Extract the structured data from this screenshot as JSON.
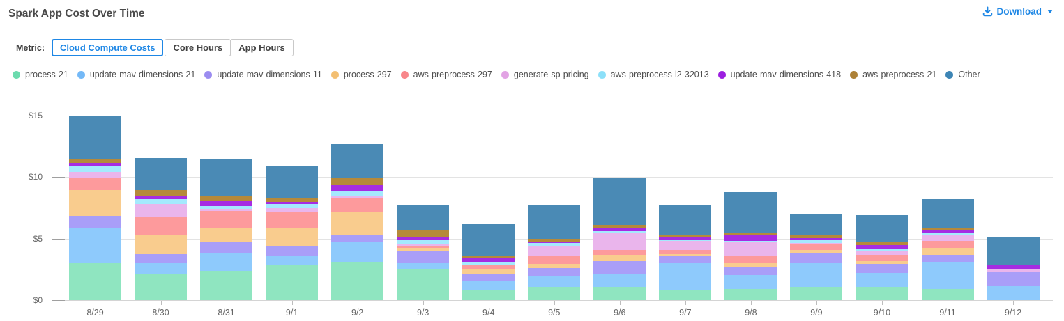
{
  "header": {
    "title": "Spark App Cost Over Time",
    "download_label": "Download",
    "accent_color": "#1e87e5"
  },
  "metric": {
    "label": "Metric:",
    "options": [
      {
        "label": "Cloud Compute Costs",
        "active": true
      },
      {
        "label": "Core Hours",
        "active": false
      },
      {
        "label": "App Hours",
        "active": false
      }
    ]
  },
  "chart_data": {
    "type": "bar",
    "stacked": true,
    "legend_position": "top",
    "grid": true,
    "ylim": [
      0,
      15
    ],
    "yticks": [
      0,
      5,
      10,
      15
    ],
    "ytick_labels": [
      "$0",
      "$5",
      "$10",
      "$15"
    ],
    "categories": [
      "8/29",
      "8/30",
      "8/31",
      "9/1",
      "9/2",
      "9/3",
      "9/4",
      "9/5",
      "9/6",
      "9/7",
      "9/8",
      "9/9",
      "9/10",
      "9/11",
      "9/12"
    ],
    "series": [
      {
        "name": "process-21",
        "color": "#8fe5c0",
        "dot_color": "#6cdbae",
        "values": [
          3.07,
          2.16,
          2.36,
          2.88,
          3.13,
          2.47,
          0.81,
          1.06,
          1.08,
          0.85,
          0.9,
          1.07,
          1.07,
          0.88,
          0
        ]
      },
      {
        "name": "update-mav-dimensions-21",
        "color": "#8ecafc",
        "dot_color": "#74b9f7",
        "values": [
          2.82,
          0.87,
          1.47,
          0.75,
          1.56,
          0.56,
          0.72,
          0.85,
          1.06,
          2.13,
          1.15,
          1.98,
          1.13,
          2.22,
          1.13
        ]
      },
      {
        "name": "update-mav-dimensions-11",
        "color": "#a99ef8",
        "dot_color": "#9b8cf0",
        "values": [
          0.98,
          0.7,
          0.85,
          0.72,
          0.62,
          0.98,
          0.64,
          0.69,
          1.02,
          0.56,
          0.66,
          0.79,
          0.72,
          0.6,
          1.13
        ]
      },
      {
        "name": "process-297",
        "color": "#f9cc8e",
        "dot_color": "#f3bf72",
        "values": [
          2.07,
          1.51,
          1.16,
          1.49,
          1.9,
          0.23,
          0.4,
          0.32,
          0.52,
          0.19,
          0.32,
          0.22,
          0.28,
          0.57,
          0
        ]
      },
      {
        "name": "aws-preprocess-297",
        "color": "#fd9a9c",
        "dot_color": "#f8868a",
        "values": [
          1.04,
          1.47,
          1.41,
          1.34,
          1.05,
          0.19,
          0.26,
          0.71,
          0.38,
          0.32,
          0.62,
          0.47,
          0.51,
          0.52,
          0
        ]
      },
      {
        "name": "generate-sp-pricing",
        "color": "#eab5ec",
        "dot_color": "#e2a3e4",
        "values": [
          0.43,
          1.11,
          0.15,
          0.36,
          0.15,
          0.1,
          0.05,
          0.76,
          1.36,
          0.75,
          1.07,
          0.11,
          0.3,
          0.47,
          0.3
        ]
      },
      {
        "name": "aws-preprocess-l2-32013",
        "color": "#a5e9fd",
        "dot_color": "#8ce0f9",
        "values": [
          0.53,
          0.38,
          0.24,
          0.25,
          0.45,
          0.38,
          0.25,
          0.23,
          0.19,
          0.15,
          0.08,
          0.23,
          0.15,
          0.23,
          0
        ]
      },
      {
        "name": "update-mav-dimensions-418",
        "color": "#a62ce2",
        "dot_color": "#9c1fe0",
        "values": [
          0.19,
          0.23,
          0.41,
          0.19,
          0.55,
          0.19,
          0.32,
          0.15,
          0.26,
          0.15,
          0.45,
          0.19,
          0.32,
          0.15,
          0.34
        ]
      },
      {
        "name": "aws-preprocess-21",
        "color": "#b5893a",
        "dot_color": "#ad8136",
        "values": [
          0.37,
          0.49,
          0.41,
          0.32,
          0.55,
          0.62,
          0.15,
          0.23,
          0.26,
          0.17,
          0.19,
          0.19,
          0.23,
          0.22,
          0
        ]
      },
      {
        "name": "Other",
        "color": "#4a8ab5",
        "dot_color": "#3d85b5",
        "values": [
          3.5,
          2.63,
          3.04,
          2.6,
          2.71,
          1.98,
          2.58,
          2.75,
          3.85,
          2.47,
          3.33,
          1.72,
          2.2,
          2.36,
          2.18
        ]
      }
    ]
  }
}
